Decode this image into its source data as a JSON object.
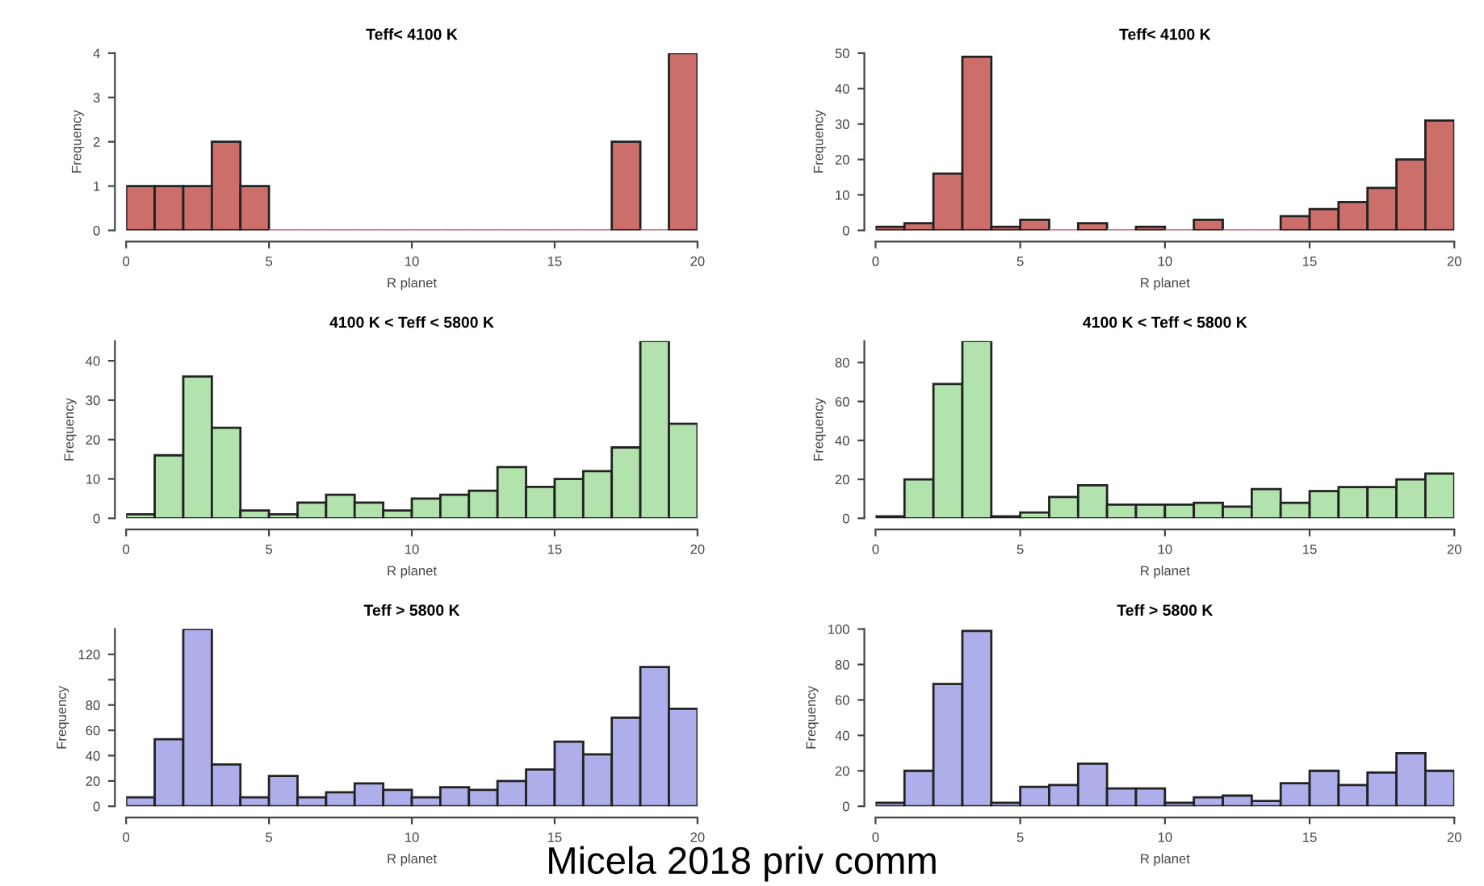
{
  "chart_data": [
    {
      "type": "histogram",
      "title": "Teff< 4100 K",
      "xlabel": "R planet",
      "ylabel": "Frequency",
      "bins": [
        0,
        1,
        2,
        3,
        4,
        5,
        6,
        7,
        8,
        9,
        10,
        11,
        12,
        13,
        14,
        15,
        16,
        17,
        18,
        19,
        20
      ],
      "values": [
        1,
        1,
        1,
        2,
        1,
        0,
        0,
        0,
        0,
        0,
        0,
        0,
        0,
        0,
        0,
        0,
        0,
        2,
        0,
        4
      ],
      "color": "#cc6f6b",
      "xlim": [
        0,
        20
      ],
      "xticks": [
        0,
        5,
        10,
        15,
        20
      ],
      "ylim": [
        0,
        4
      ],
      "yticks": [
        0,
        1,
        2,
        3,
        4
      ]
    },
    {
      "type": "histogram",
      "title": "Teff< 4100 K",
      "xlabel": "R planet",
      "ylabel": "Frequency",
      "bins": [
        0,
        1,
        2,
        3,
        4,
        5,
        6,
        7,
        8,
        9,
        10,
        11,
        12,
        13,
        14,
        15,
        16,
        17,
        18,
        19,
        20
      ],
      "values": [
        1,
        2,
        16,
        49,
        1,
        3,
        0,
        2,
        0,
        1,
        0,
        3,
        0,
        0,
        4,
        6,
        8,
        12,
        20,
        31
      ],
      "color": "#cc6f6b",
      "xlim": [
        0,
        20
      ],
      "xticks": [
        0,
        5,
        10,
        15,
        20
      ],
      "ylim": [
        0,
        50
      ],
      "yticks": [
        0,
        10,
        20,
        30,
        40,
        50
      ]
    },
    {
      "type": "histogram",
      "title": "4100 K < Teff < 5800 K",
      "xlabel": "R planet",
      "ylabel": "Frequency",
      "bins": [
        0,
        1,
        2,
        3,
        4,
        5,
        6,
        7,
        8,
        9,
        10,
        11,
        12,
        13,
        14,
        15,
        16,
        17,
        18,
        19,
        20
      ],
      "values": [
        1,
        16,
        36,
        23,
        2,
        1,
        4,
        6,
        4,
        2,
        5,
        6,
        7,
        13,
        8,
        10,
        12,
        18,
        45,
        24
      ],
      "color": "#b3e3ad",
      "xlim": [
        0,
        20
      ],
      "xticks": [
        0,
        5,
        10,
        15,
        20
      ],
      "ylim": [
        0,
        45
      ],
      "yticks": [
        0,
        10,
        20,
        30,
        40
      ]
    },
    {
      "type": "histogram",
      "title": "4100 K < Teff < 5800 K",
      "xlabel": "R planet",
      "ylabel": "Frequency",
      "bins": [
        0,
        1,
        2,
        3,
        4,
        5,
        6,
        7,
        8,
        9,
        10,
        11,
        12,
        13,
        14,
        15,
        16,
        17,
        18,
        19,
        20
      ],
      "values": [
        1,
        20,
        69,
        91,
        1,
        3,
        11,
        17,
        7,
        7,
        7,
        8,
        6,
        15,
        8,
        14,
        16,
        16,
        20,
        23
      ],
      "color": "#b3e3ad",
      "xlim": [
        0,
        20
      ],
      "xticks": [
        0,
        5,
        10,
        15,
        20
      ],
      "ylim": [
        0,
        91
      ],
      "yticks": [
        0,
        20,
        40,
        60,
        80
      ]
    },
    {
      "type": "histogram",
      "title": "Teff > 5800 K",
      "xlabel": "R planet",
      "ylabel": "Frequency",
      "bins": [
        0,
        1,
        2,
        3,
        4,
        5,
        6,
        7,
        8,
        9,
        10,
        11,
        12,
        13,
        14,
        15,
        16,
        17,
        18,
        19,
        20
      ],
      "values": [
        7,
        53,
        140,
        33,
        7,
        24,
        7,
        11,
        18,
        13,
        7,
        15,
        13,
        20,
        29,
        51,
        41,
        70,
        110,
        77
      ],
      "color": "#aeaeea",
      "xlim": [
        0,
        20
      ],
      "xticks": [
        0,
        5,
        10,
        15,
        20
      ],
      "ylim": [
        0,
        140
      ],
      "yticks": [
        0,
        20,
        40,
        60,
        80,
        {
          "value": 100,
          "label": null
        },
        120
      ],
      "annotations": [
        "Micela 2018 priv comm"
      ]
    },
    {
      "type": "histogram",
      "title": "Teff > 5800 K",
      "xlabel": "R planet",
      "ylabel": "Frequency",
      "bins": [
        0,
        1,
        2,
        3,
        4,
        5,
        6,
        7,
        8,
        9,
        10,
        11,
        12,
        13,
        14,
        15,
        16,
        17,
        18,
        19,
        20
      ],
      "values": [
        2,
        20,
        69,
        99,
        2,
        11,
        12,
        24,
        10,
        10,
        2,
        5,
        6,
        3,
        13,
        20,
        12,
        19,
        30,
        20
      ],
      "color": "#aeaeea",
      "xlim": [
        0,
        20
      ],
      "xticks": [
        0,
        5,
        10,
        15,
        20
      ],
      "ylim": [
        0,
        100
      ],
      "yticks": [
        0,
        20,
        40,
        60,
        80,
        100
      ]
    }
  ]
}
